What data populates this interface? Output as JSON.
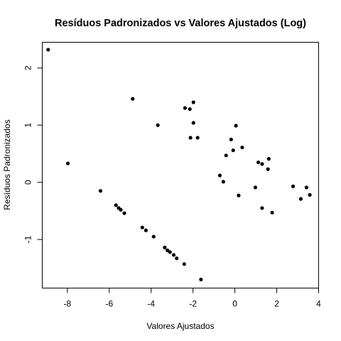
{
  "chart_data": {
    "type": "scatter",
    "title": "Resíduos Padronizados vs Valores Ajustados (Log)",
    "xlabel": "Valores Ajustados",
    "ylabel": "Resíduos Padronizados",
    "xlim": [
      -9.2,
      4.0
    ],
    "ylim": [
      -1.85,
      2.45
    ],
    "xticks": [
      -8,
      -6,
      -4,
      -2,
      0,
      2,
      4
    ],
    "xtick_labels": [
      "-8",
      "-6",
      "-4",
      "-2",
      "0",
      "2",
      "4"
    ],
    "yticks": [
      -1,
      0,
      1,
      2
    ],
    "ytick_labels": [
      "-1",
      "0",
      "1",
      "2"
    ],
    "grid": false,
    "legend": "none",
    "point_color": "#000000",
    "points": [
      {
        "x": -8.92,
        "y": 2.32
      },
      {
        "x": -7.98,
        "y": 0.33
      },
      {
        "x": -6.42,
        "y": -0.15
      },
      {
        "x": -5.68,
        "y": -0.4
      },
      {
        "x": -5.55,
        "y": -0.45
      },
      {
        "x": -5.45,
        "y": -0.48
      },
      {
        "x": -5.28,
        "y": -0.54
      },
      {
        "x": -4.88,
        "y": 1.46
      },
      {
        "x": -4.42,
        "y": -0.79
      },
      {
        "x": -4.25,
        "y": -0.84
      },
      {
        "x": -3.88,
        "y": -0.95
      },
      {
        "x": -3.68,
        "y": 1.0
      },
      {
        "x": -3.35,
        "y": -1.14
      },
      {
        "x": -3.22,
        "y": -1.19
      },
      {
        "x": -3.1,
        "y": -1.22
      },
      {
        "x": -2.92,
        "y": -1.27
      },
      {
        "x": -2.78,
        "y": -1.33
      },
      {
        "x": -2.42,
        "y": -1.43
      },
      {
        "x": -2.38,
        "y": 1.3
      },
      {
        "x": -2.15,
        "y": 1.28
      },
      {
        "x": -2.12,
        "y": 0.78
      },
      {
        "x": -1.98,
        "y": 1.4
      },
      {
        "x": -1.98,
        "y": 1.04
      },
      {
        "x": -1.78,
        "y": 0.78
      },
      {
        "x": -1.62,
        "y": -1.7
      },
      {
        "x": -0.72,
        "y": 0.12
      },
      {
        "x": -0.55,
        "y": 0.01
      },
      {
        "x": -0.42,
        "y": 0.47
      },
      {
        "x": -0.18,
        "y": 0.75
      },
      {
        "x": -0.08,
        "y": 0.56
      },
      {
        "x": 0.05,
        "y": 0.99
      },
      {
        "x": 0.18,
        "y": -0.23
      },
      {
        "x": 0.35,
        "y": 0.61
      },
      {
        "x": 0.98,
        "y": -0.09
      },
      {
        "x": 1.12,
        "y": 0.35
      },
      {
        "x": 1.3,
        "y": 0.32
      },
      {
        "x": 1.3,
        "y": -0.45
      },
      {
        "x": 1.58,
        "y": 0.23
      },
      {
        "x": 1.62,
        "y": 0.41
      },
      {
        "x": 1.78,
        "y": -0.53
      },
      {
        "x": 2.78,
        "y": -0.07
      },
      {
        "x": 3.15,
        "y": -0.29
      },
      {
        "x": 3.42,
        "y": -0.09
      },
      {
        "x": 3.58,
        "y": -0.22
      }
    ]
  }
}
